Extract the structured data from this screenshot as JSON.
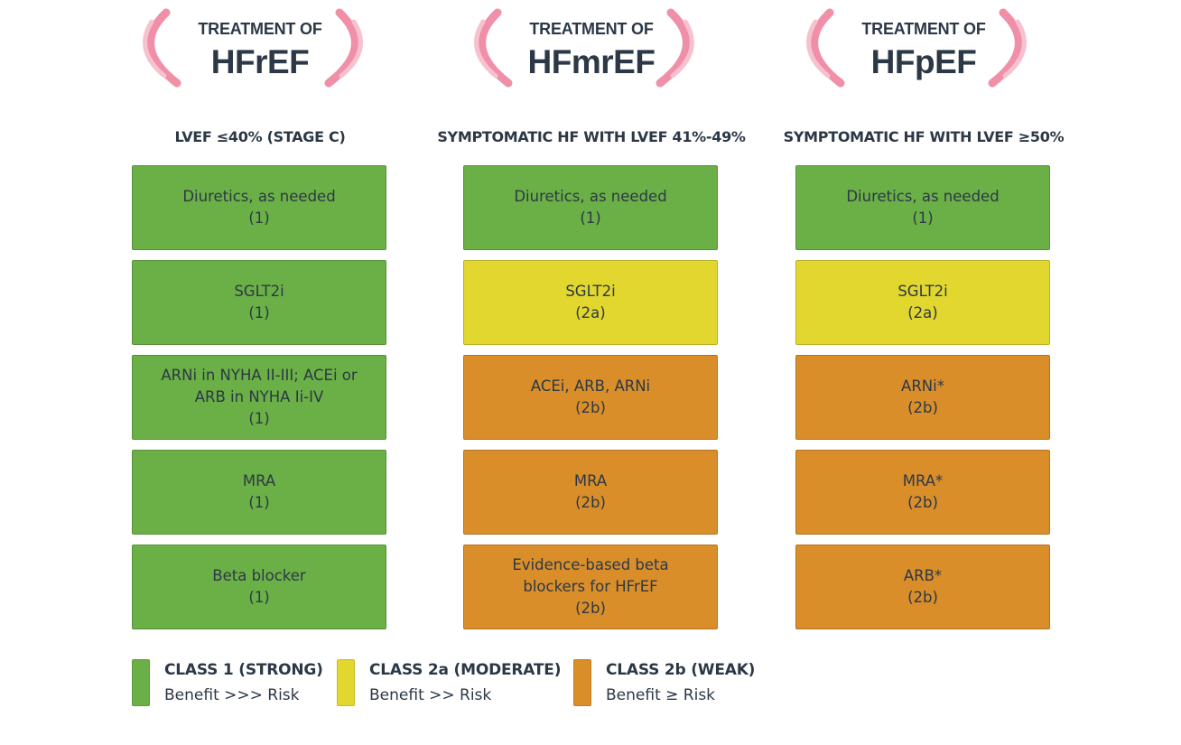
{
  "colors": {
    "class1": "#6ab046",
    "class2a": "#e2d72e",
    "class2b": "#d98e2a",
    "bracket": "#f08fa8"
  },
  "columns": [
    {
      "header_small": "TREATMENT OF",
      "header_big": "HFrEF",
      "subtitle": "LVEF ≤40% (STAGE C)",
      "boxes": [
        {
          "text": "Diuretics, as needed",
          "class_label": "(1)",
          "class": "1"
        },
        {
          "text": "SGLT2i",
          "class_label": "(1)",
          "class": "1"
        },
        {
          "text": "ARNi in NYHA II-III; ACEi or ARB in NYHA Ii-IV",
          "class_label": "(1)",
          "class": "1"
        },
        {
          "text": "MRA",
          "class_label": "(1)",
          "class": "1"
        },
        {
          "text": "Beta blocker",
          "class_label": "(1)",
          "class": "1"
        }
      ]
    },
    {
      "header_small": "TREATMENT OF",
      "header_big": "HFmrEF",
      "subtitle": "SYMPTOMATIC HF WITH LVEF 41%-49%",
      "boxes": [
        {
          "text": "Diuretics, as needed",
          "class_label": "(1)",
          "class": "1"
        },
        {
          "text": "SGLT2i",
          "class_label": "(2a)",
          "class": "2a"
        },
        {
          "text": "ACEi, ARB, ARNi",
          "class_label": "(2b)",
          "class": "2b"
        },
        {
          "text": "MRA",
          "class_label": "(2b)",
          "class": "2b"
        },
        {
          "text": "Evidence-based beta blockers for HFrEF",
          "class_label": "(2b)",
          "class": "2b"
        }
      ]
    },
    {
      "header_small": "TREATMENT OF",
      "header_big": "HFpEF",
      "subtitle": "SYMPTOMATIC HF WITH LVEF ≥50%",
      "boxes": [
        {
          "text": "Diuretics, as needed",
          "class_label": "(1)",
          "class": "1"
        },
        {
          "text": "SGLT2i",
          "class_label": "(2a)",
          "class": "2a"
        },
        {
          "text": "ARNi*",
          "class_label": "(2b)",
          "class": "2b"
        },
        {
          "text": "MRA*",
          "class_label": "(2b)",
          "class": "2b"
        },
        {
          "text": "ARB*",
          "class_label": "(2b)",
          "class": "2b"
        }
      ]
    }
  ],
  "legend": [
    {
      "title": "CLASS 1 (STRONG)",
      "sub": "Benefit >>> Risk",
      "class": "1"
    },
    {
      "title": "CLASS 2a (MODERATE)",
      "sub": "Benefit >> Risk",
      "class": "2a"
    },
    {
      "title": "CLASS 2b (WEAK)",
      "sub": "Benefit ≥ Risk",
      "class": "2b"
    }
  ]
}
